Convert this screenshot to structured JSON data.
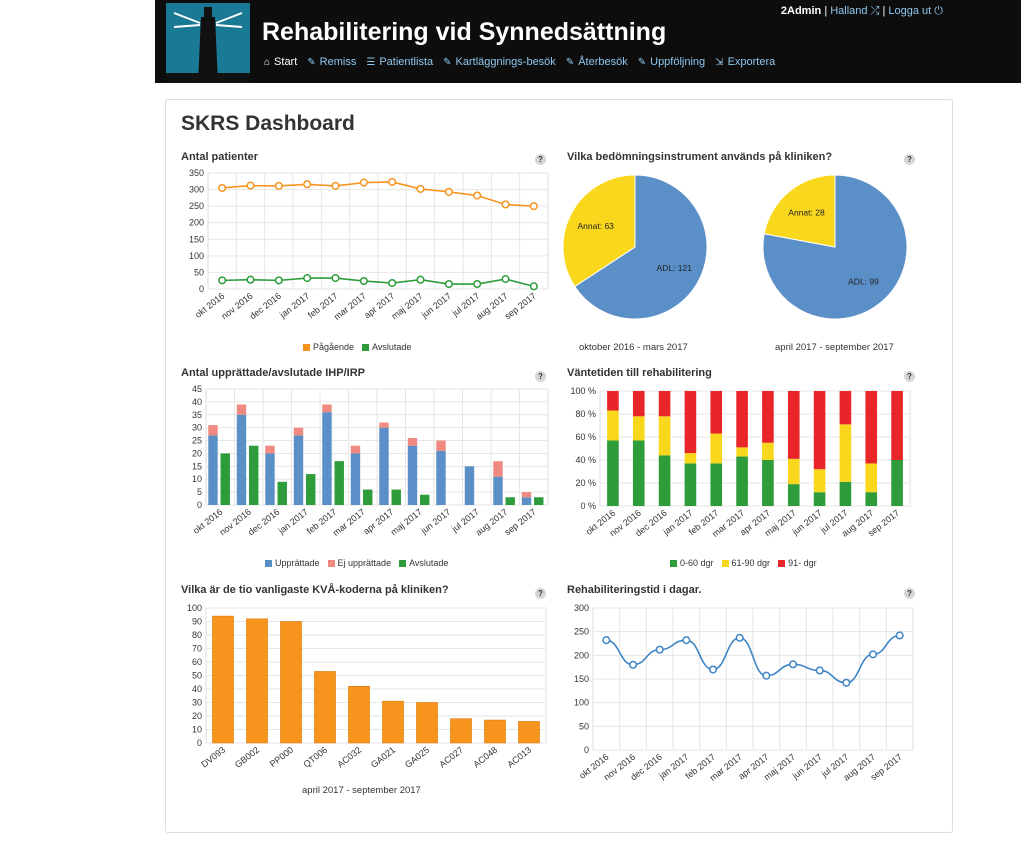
{
  "app": {
    "title": "Rehabilitering vid Synnedsättning"
  },
  "nav": [
    {
      "label": "Start",
      "icon": "home-icon"
    },
    {
      "label": "Remiss",
      "icon": "edit-icon"
    },
    {
      "label": "Patientlista",
      "icon": "list-icon"
    },
    {
      "label": "Kartläggnings-besök",
      "icon": "edit-icon"
    },
    {
      "label": "Återbesök",
      "icon": "edit-icon"
    },
    {
      "label": "Uppföljning",
      "icon": "edit-icon"
    },
    {
      "label": "Exportera",
      "icon": "export-icon"
    }
  ],
  "user": {
    "name": "2Admin",
    "sep": "|",
    "region": "Halland",
    "logout": "Logga ut"
  },
  "dashboard": {
    "title": "SKRS Dashboard",
    "help": "?"
  },
  "months": [
    "okt 2016",
    "nov 2016",
    "dec 2016",
    "jan 2017",
    "feb 2017",
    "mar 2017",
    "apr 2017",
    "maj 2017",
    "jun 2017",
    "jul 2017",
    "aug 2017",
    "sep 2017"
  ],
  "chart_data": [
    {
      "id": "patients",
      "type": "line",
      "title": "Antal patienter",
      "ylim": [
        0,
        350
      ],
      "yticks": [
        0,
        50,
        100,
        150,
        200,
        250,
        300,
        350
      ],
      "series": [
        {
          "name": "Pågående",
          "color": "#f7941d",
          "values": [
            305,
            312,
            311,
            316,
            311,
            321,
            323,
            302,
            293,
            282,
            255,
            250
          ]
        },
        {
          "name": "Avslutade",
          "color": "#2e9c3a",
          "values": [
            26,
            28,
            26,
            33,
            33,
            24,
            18,
            28,
            15,
            15,
            30,
            8
          ]
        }
      ]
    },
    {
      "id": "instruments",
      "type": "pie",
      "title": "Vilka bedömningsinstrument används på kliniken?",
      "pies": [
        {
          "caption": "oktober 2016 - mars 2017",
          "slices": [
            {
              "name": "ADL",
              "value": 121,
              "color": "#5b8fc7"
            },
            {
              "name": "Annat",
              "value": 63,
              "color": "#f9d71c"
            }
          ]
        },
        {
          "caption": "april 2017 - september 2017",
          "slices": [
            {
              "name": "ADL",
              "value": 99,
              "color": "#5b8fc7"
            },
            {
              "name": "Annat",
              "value": 28,
              "color": "#f9d71c"
            }
          ]
        }
      ]
    },
    {
      "id": "ihp",
      "type": "bar",
      "title": "Antal upprättade/avslutade IHP/IRP",
      "ylim": [
        0,
        45
      ],
      "yticks": [
        0,
        5,
        10,
        15,
        20,
        25,
        30,
        35,
        40,
        45
      ],
      "series": [
        {
          "name": "Upprättade",
          "color": "#5b8fc7",
          "values": [
            27,
            35,
            20,
            27,
            36,
            20,
            30,
            23,
            21,
            15,
            11,
            3
          ]
        },
        {
          "name": "Ej upprättade",
          "color": "#f08a80",
          "values": [
            4,
            4,
            3,
            3,
            3,
            3,
            2,
            3,
            4,
            0,
            6,
            2
          ]
        },
        {
          "name": "Avslutade",
          "color": "#2e9c3a",
          "values": [
            20,
            23,
            9,
            12,
            17,
            6,
            6,
            4,
            0,
            0,
            3,
            3
          ]
        }
      ]
    },
    {
      "id": "waiting",
      "type": "bar",
      "title": "Väntetiden till rehabilitering",
      "ylim": [
        0,
        100
      ],
      "yticks": [
        "0 %",
        "20 %",
        "40 %",
        "60 %",
        "80 %",
        "100 %"
      ],
      "series": [
        {
          "name": "0-60 dgr",
          "color": "#2e9c3a",
          "values": [
            57,
            57,
            44,
            37,
            37,
            43,
            40,
            19,
            12,
            21,
            12,
            40
          ]
        },
        {
          "name": "61-90 dgr",
          "color": "#f9d71c",
          "values": [
            26,
            21,
            34,
            9,
            26,
            8,
            15,
            22,
            20,
            50,
            25,
            0
          ]
        },
        {
          "name": "91- dgr",
          "color": "#e8262a",
          "values": [
            17,
            22,
            22,
            54,
            37,
            49,
            45,
            59,
            68,
            29,
            63,
            60
          ]
        }
      ]
    },
    {
      "id": "kva",
      "type": "bar",
      "title": "Vilka är de tio vanligaste KVÅ-koderna på kliniken?",
      "caption": "april 2017 - september 2017",
      "ylim": [
        0,
        100
      ],
      "yticks": [
        0,
        10,
        20,
        30,
        40,
        50,
        60,
        70,
        80,
        90,
        100
      ],
      "categories": [
        "DV093",
        "GB002",
        "PP000",
        "QT006",
        "AC032",
        "GA021",
        "GA025",
        "AC027",
        "AC048",
        "AC013"
      ],
      "values": [
        94,
        92,
        90,
        53,
        42,
        31,
        30,
        18,
        17,
        16
      ],
      "color": "#f7941d"
    },
    {
      "id": "rehabtime",
      "type": "line",
      "title": "Rehabiliteringstid i dagar.",
      "ylim": [
        0,
        300
      ],
      "yticks": [
        0,
        50,
        100,
        150,
        200,
        250,
        300
      ],
      "series": [
        {
          "color": "#3d85c6",
          "values": [
            232,
            180,
            212,
            232,
            170,
            237,
            157,
            181,
            168,
            142,
            202,
            242
          ]
        }
      ]
    }
  ]
}
